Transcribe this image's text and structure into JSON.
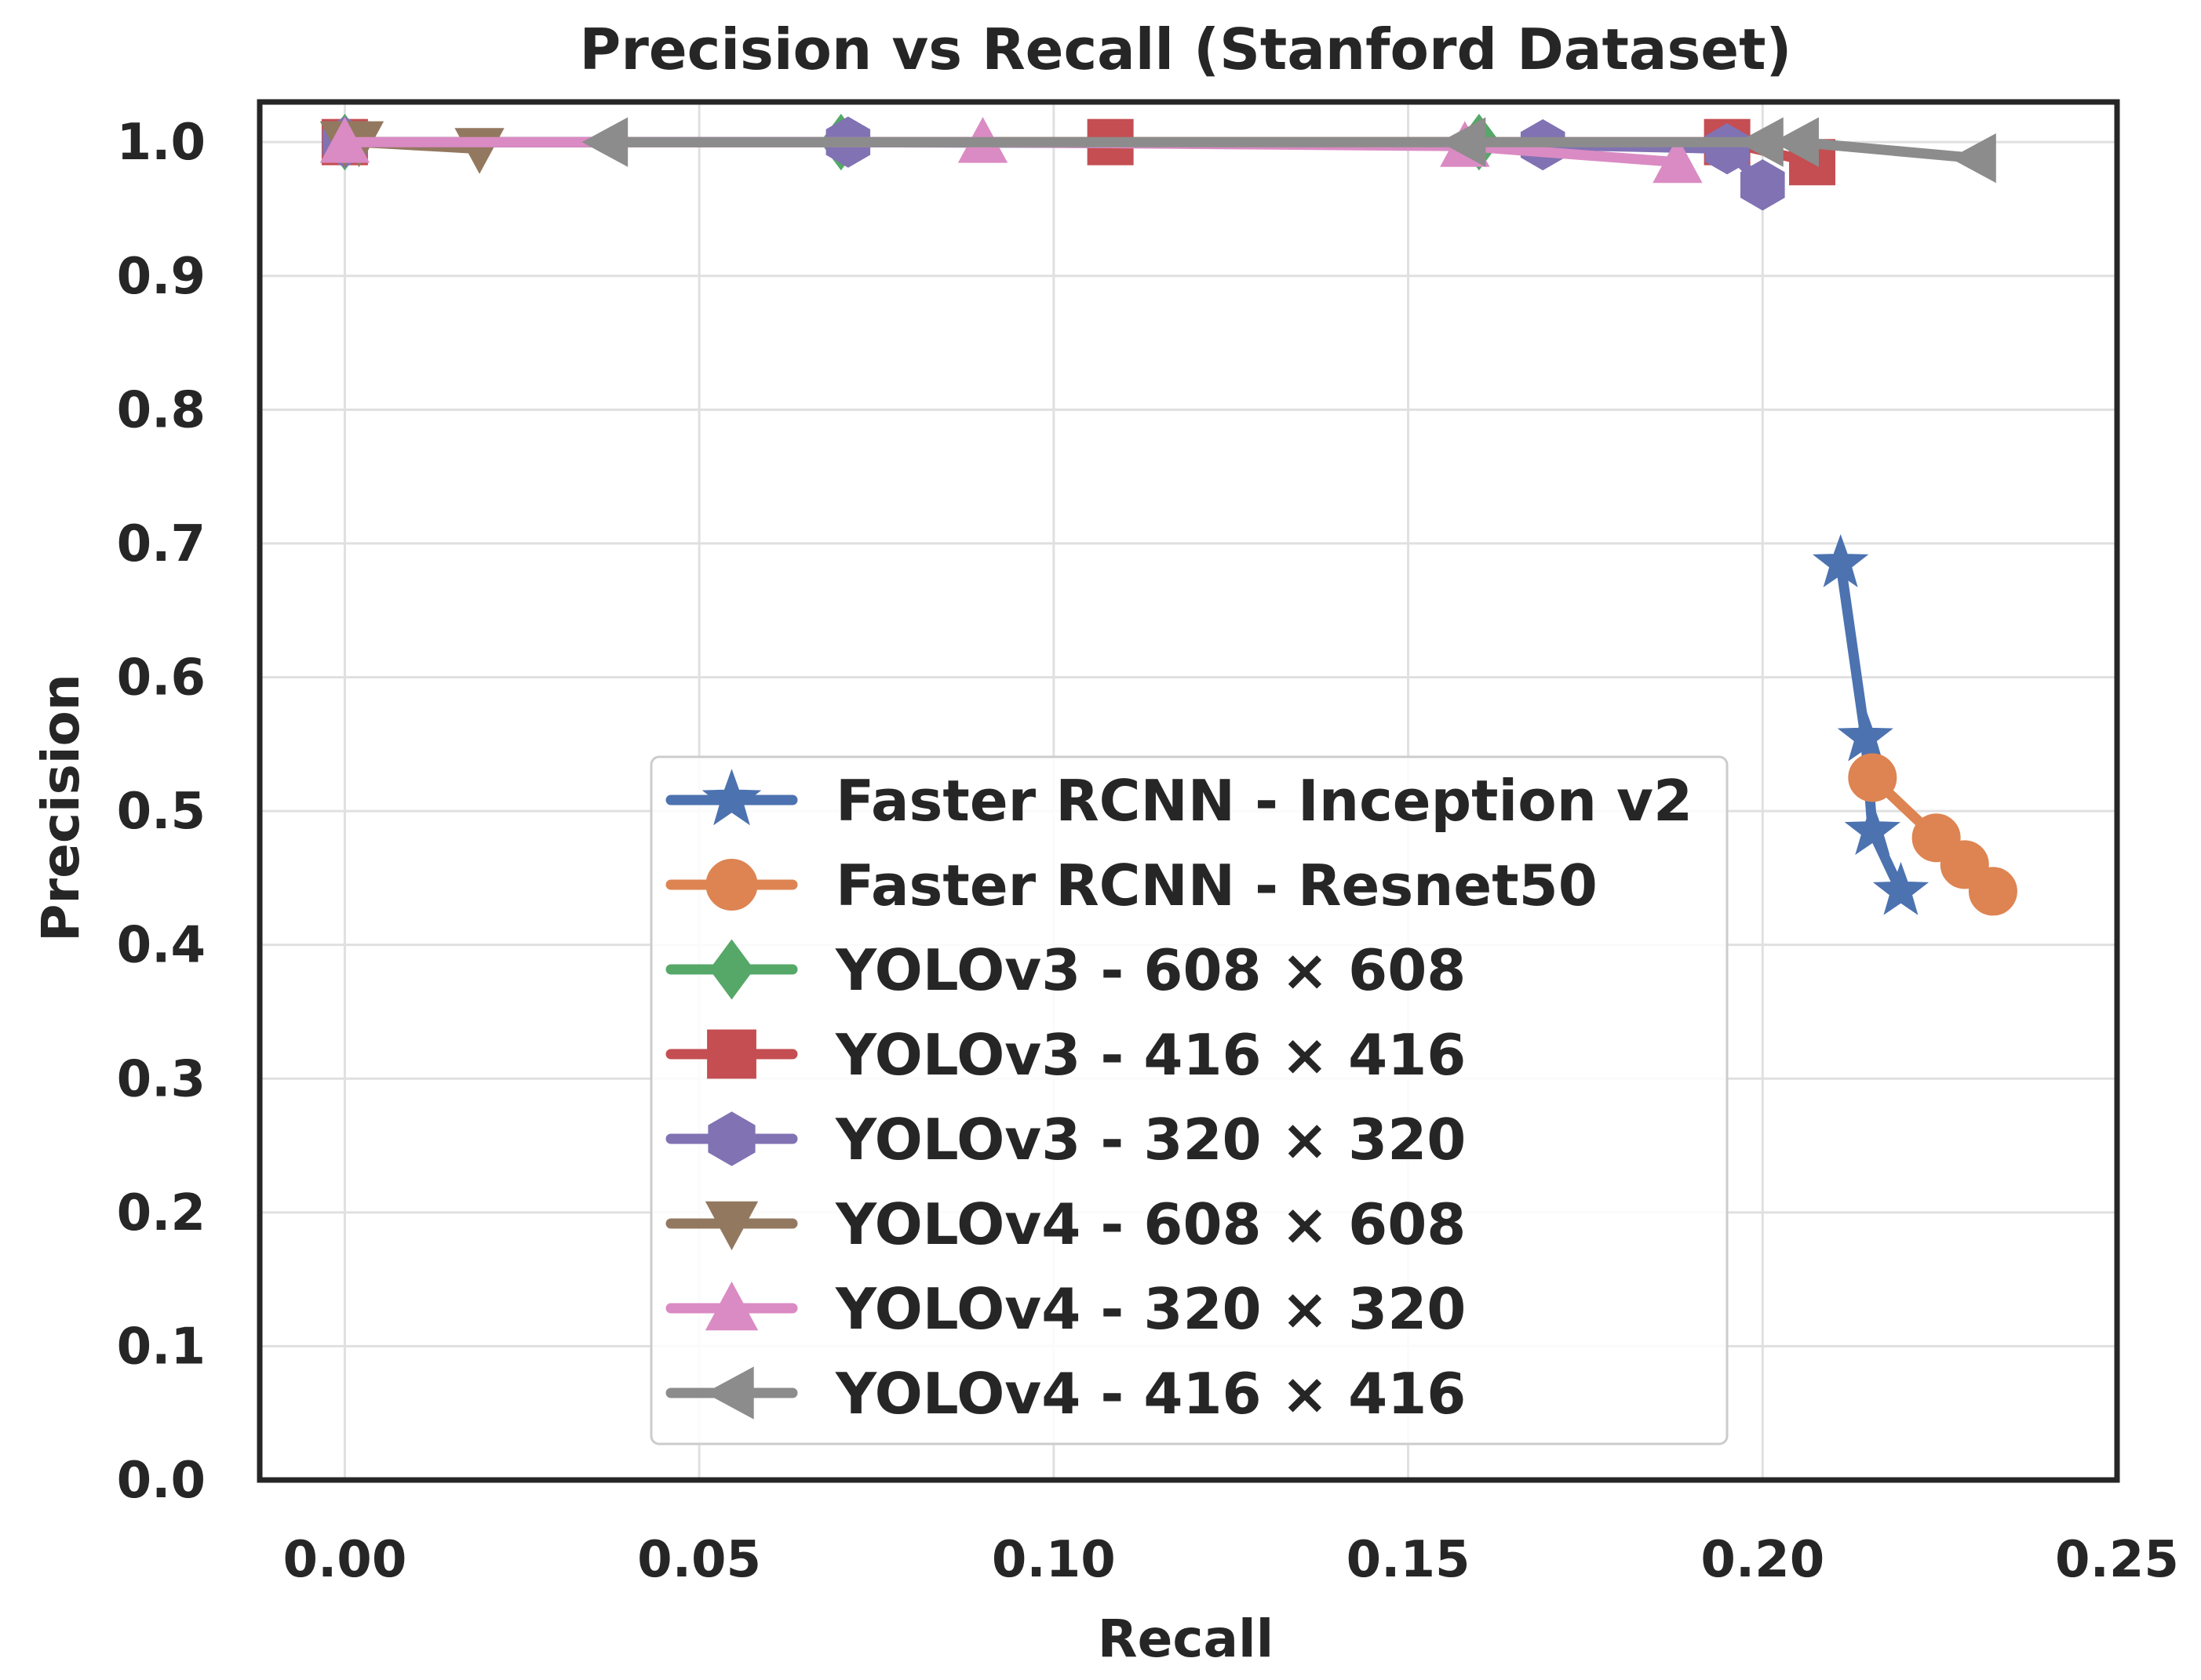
{
  "chart_data": {
    "type": "line",
    "title": "Precision vs Recall (Stanford Dataset)",
    "xlabel": "Recall",
    "ylabel": "Precision",
    "xlim": [
      -0.012,
      0.25
    ],
    "ylim": [
      0.0,
      1.03
    ],
    "grid": true,
    "legend_position": "lower-center",
    "xticks": [
      "0.00",
      "0.05",
      "0.10",
      "0.15",
      "0.20",
      "0.25"
    ],
    "yticks": [
      "0.0",
      "0.1",
      "0.2",
      "0.3",
      "0.4",
      "0.5",
      "0.6",
      "0.7",
      "0.8",
      "0.9",
      "1.0"
    ],
    "series": [
      {
        "name": "Faster RCNN - Inception v2",
        "color": "#4c72b0",
        "marker": "star",
        "x": [
          0.211,
          0.2145,
          0.2155,
          0.2195
        ],
        "y": [
          0.685,
          0.555,
          0.485,
          0.44
        ]
      },
      {
        "name": "Faster RCNN - Resnet50",
        "color": "#dd8452",
        "marker": "circle",
        "x": [
          0.2155,
          0.2245,
          0.2285,
          0.2325
        ],
        "y": [
          0.525,
          0.48,
          0.46,
          0.44
        ]
      },
      {
        "name": "YOLOv3 - 608 × 608",
        "color": "#55a868",
        "marker": "diamond",
        "x": [
          0.0,
          0.07,
          0.16
        ],
        "y": [
          1.0,
          1.0,
          1.0
        ]
      },
      {
        "name": "YOLOv3 - 416 × 416",
        "color": "#c44e52",
        "marker": "square",
        "x": [
          0.0,
          0.108,
          0.195,
          0.207
        ],
        "y": [
          1.0,
          1.0,
          1.0,
          0.985
        ]
      },
      {
        "name": "YOLOv3 - 320 × 320",
        "color": "#8172b3",
        "marker": "hexagon",
        "x": [
          0.0,
          0.071,
          0.169,
          0.195,
          0.2
        ],
        "y": [
          1.0,
          1.0,
          0.998,
          0.995,
          0.968
        ]
      },
      {
        "name": "YOLOv4 - 608 × 608",
        "color": "#937860",
        "marker": "triangle-down",
        "x": [
          0.0,
          0.002,
          0.019
        ],
        "y": [
          1.0,
          1.0,
          0.995
        ]
      },
      {
        "name": "YOLOv4 - 320 × 320",
        "color": "#da8bc3",
        "marker": "triangle-up",
        "x": [
          0.0,
          0.09,
          0.158,
          0.188
        ],
        "y": [
          1.0,
          1.0,
          0.997,
          0.985
        ]
      },
      {
        "name": "YOLOv4 - 416 × 416",
        "color": "#8c8c8c",
        "marker": "triangle-left",
        "x": [
          0.037,
          0.158,
          0.2,
          0.205,
          0.23
        ],
        "y": [
          1.0,
          1.0,
          1.0,
          1.0,
          0.988
        ]
      }
    ]
  }
}
